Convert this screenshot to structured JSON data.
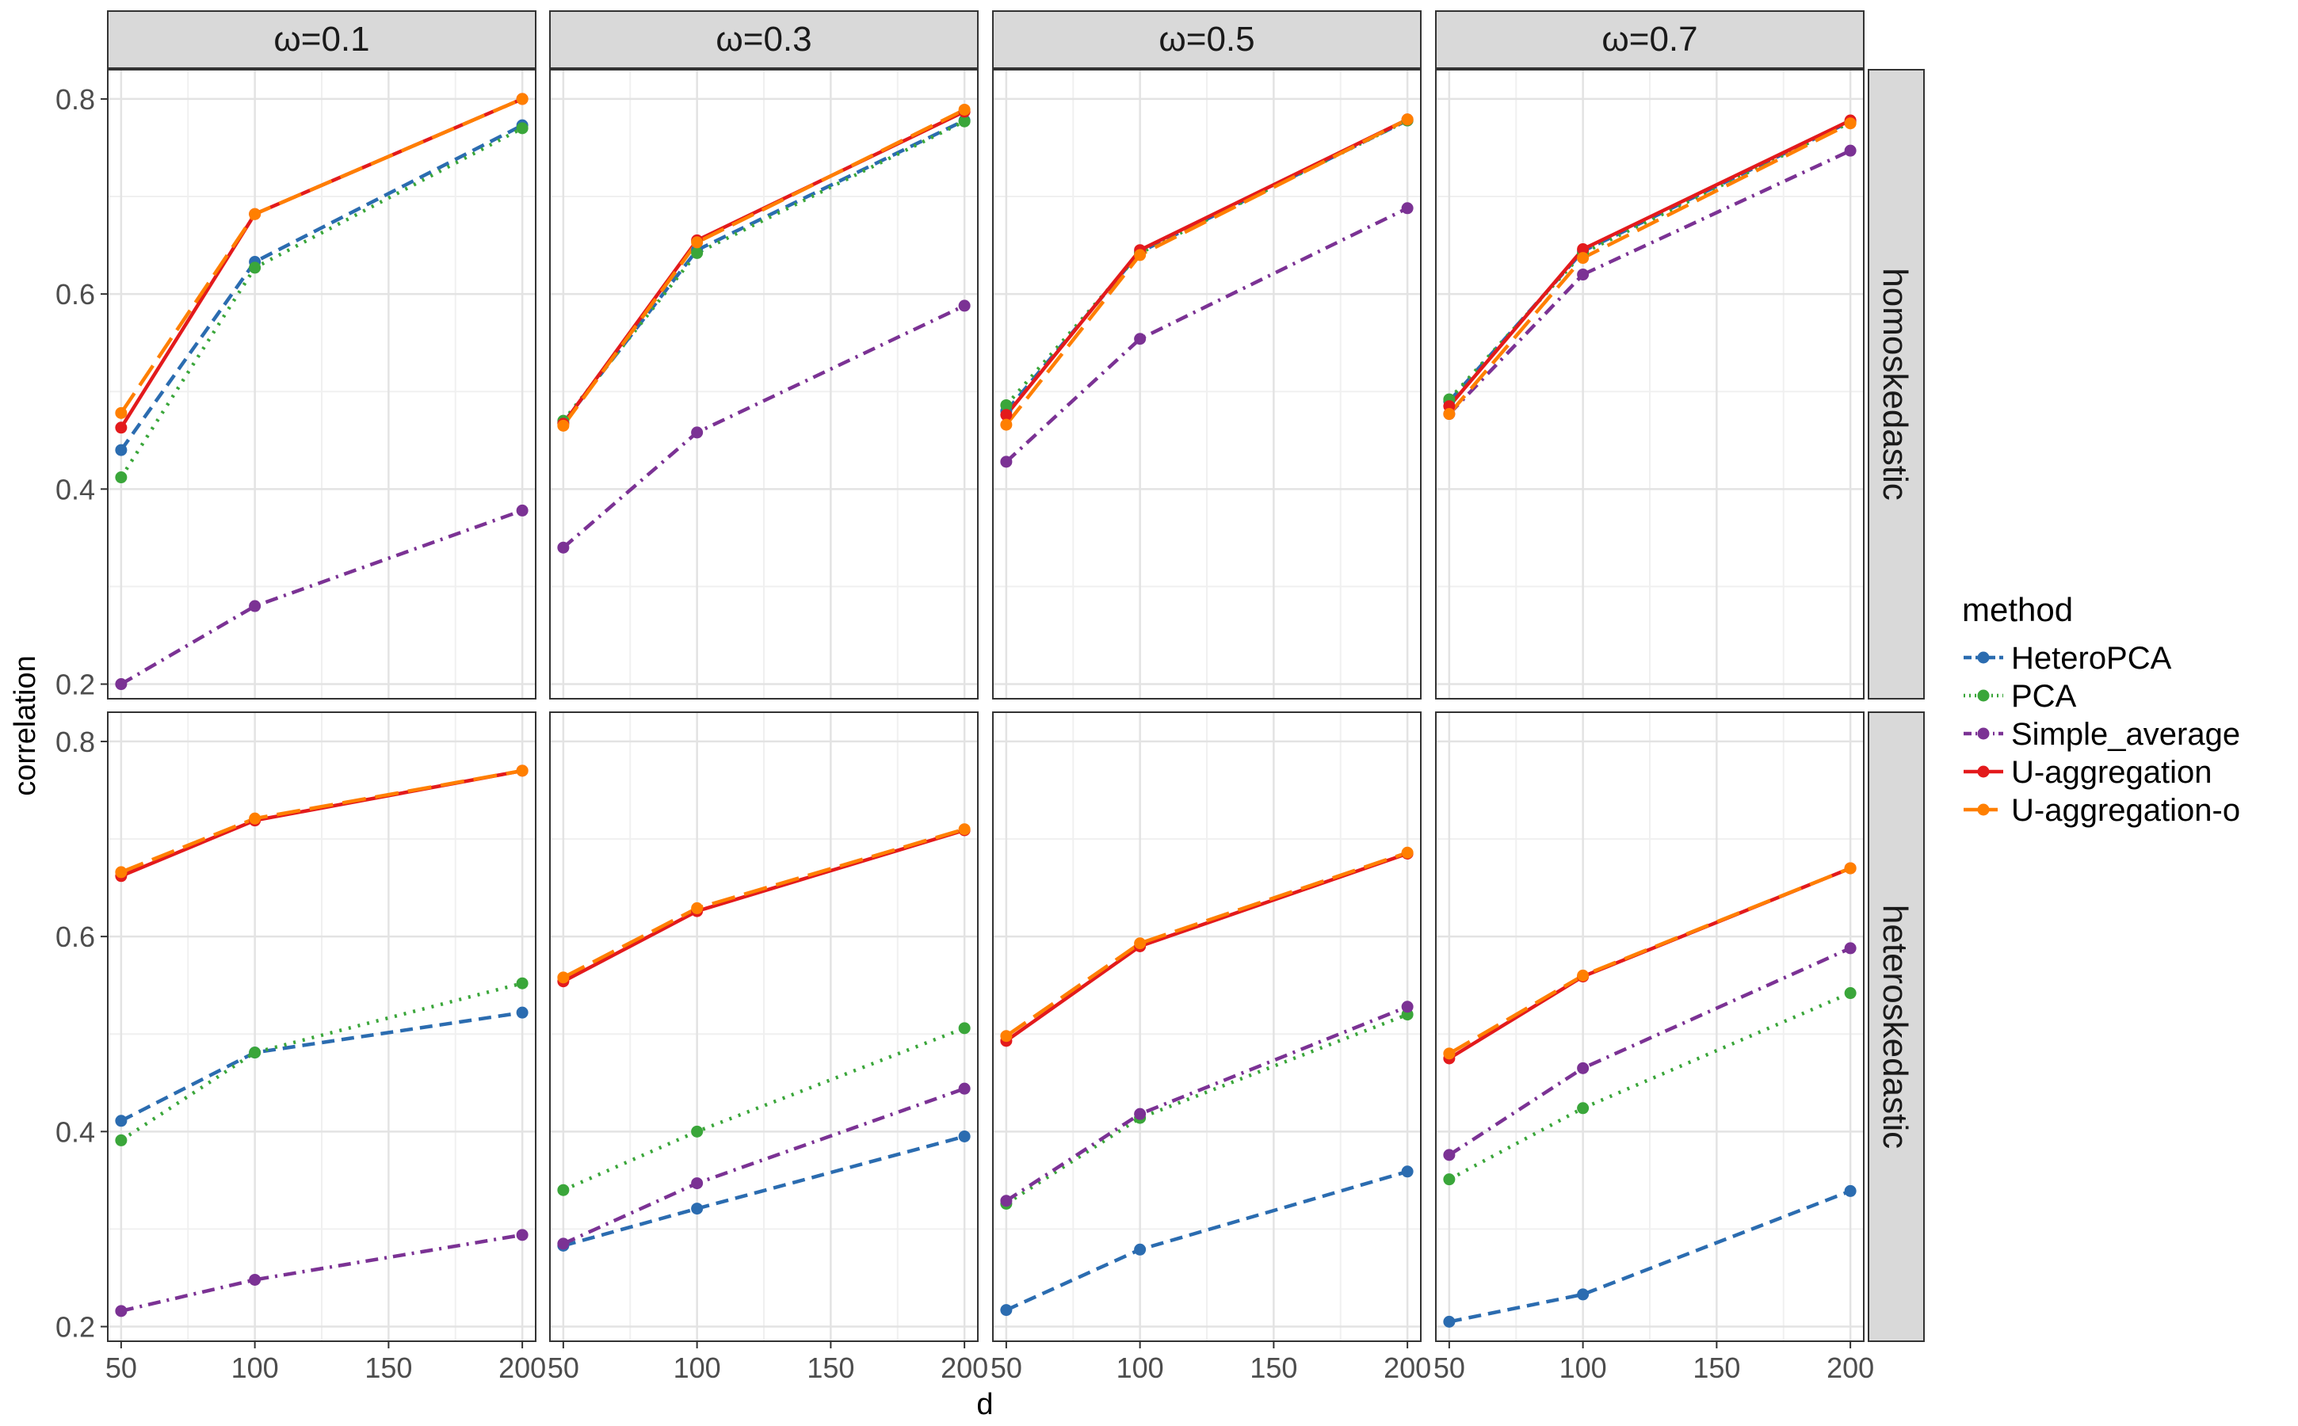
{
  "chart_data": {
    "type": "line",
    "xlabel": "d",
    "ylabel": "correlation",
    "x": [
      50,
      100,
      200
    ],
    "xticks": [
      50,
      100,
      150,
      200
    ],
    "xlim": [
      45,
      205
    ],
    "yticks": [
      0.2,
      0.4,
      0.6,
      0.8
    ],
    "ylim": [
      0.185,
      0.83
    ],
    "columns": [
      "ω=0.1",
      "ω=0.3",
      "ω=0.5",
      "ω=0.7"
    ],
    "rows": [
      "homoskedastic",
      "heteroskedastic"
    ],
    "legend": {
      "title": "method",
      "position": "right",
      "items": [
        "HeteroPCA",
        "PCA",
        "Simple_average",
        "U-aggregation",
        "U-aggregation-o"
      ]
    },
    "styles": {
      "HeteroPCA": {
        "color": "#2b6cb0",
        "dash": "16 9"
      },
      "PCA": {
        "color": "#3aa63a",
        "dash": "3 9"
      },
      "Simple_average": {
        "color": "#7b3294",
        "dash": "16 8 3 8"
      },
      "U-aggregation": {
        "color": "#e31a1c",
        "dash": ""
      },
      "U-aggregation-o": {
        "color": "#ff7f00",
        "dash": "30 12"
      }
    },
    "panels": [
      {
        "row": 0,
        "col": 0,
        "series": [
          {
            "name": "HeteroPCA",
            "values": [
              0.44,
              0.633,
              0.773
            ]
          },
          {
            "name": "PCA",
            "values": [
              0.412,
              0.627,
              0.77
            ]
          },
          {
            "name": "Simple_average",
            "values": [
              0.2,
              0.28,
              0.378
            ]
          },
          {
            "name": "U-aggregation",
            "values": [
              0.463,
              0.682,
              0.8
            ]
          },
          {
            "name": "U-aggregation-o",
            "values": [
              0.478,
              0.682,
              0.8
            ]
          }
        ]
      },
      {
        "row": 0,
        "col": 1,
        "series": [
          {
            "name": "HeteroPCA",
            "values": [
              0.468,
              0.645,
              0.778
            ]
          },
          {
            "name": "PCA",
            "values": [
              0.47,
              0.642,
              0.777
            ]
          },
          {
            "name": "Simple_average",
            "values": [
              0.34,
              0.458,
              0.588
            ]
          },
          {
            "name": "U-aggregation",
            "values": [
              0.467,
              0.655,
              0.787
            ]
          },
          {
            "name": "U-aggregation-o",
            "values": [
              0.465,
              0.653,
              0.789
            ]
          }
        ]
      },
      {
        "row": 0,
        "col": 2,
        "series": [
          {
            "name": "HeteroPCA",
            "values": [
              0.48,
              0.643,
              0.778
            ]
          },
          {
            "name": "PCA",
            "values": [
              0.486,
              0.642,
              0.778
            ]
          },
          {
            "name": "Simple_average",
            "values": [
              0.428,
              0.554,
              0.688
            ]
          },
          {
            "name": "U-aggregation",
            "values": [
              0.476,
              0.645,
              0.779
            ]
          },
          {
            "name": "U-aggregation-o",
            "values": [
              0.466,
              0.64,
              0.779
            ]
          }
        ]
      },
      {
        "row": 0,
        "col": 3,
        "series": [
          {
            "name": "HeteroPCA",
            "values": [
              0.49,
              0.644,
              0.777
            ]
          },
          {
            "name": "PCA",
            "values": [
              0.492,
              0.642,
              0.776
            ]
          },
          {
            "name": "Simple_average",
            "values": [
              0.477,
              0.62,
              0.747
            ]
          },
          {
            "name": "U-aggregation",
            "values": [
              0.485,
              0.646,
              0.778
            ]
          },
          {
            "name": "U-aggregation-o",
            "values": [
              0.477,
              0.637,
              0.775
            ]
          }
        ]
      },
      {
        "row": 1,
        "col": 0,
        "series": [
          {
            "name": "HeteroPCA",
            "values": [
              0.411,
              0.481,
              0.522
            ]
          },
          {
            "name": "PCA",
            "values": [
              0.391,
              0.481,
              0.552
            ]
          },
          {
            "name": "Simple_average",
            "values": [
              0.216,
              0.248,
              0.294
            ]
          },
          {
            "name": "U-aggregation",
            "values": [
              0.662,
              0.719,
              0.77
            ]
          },
          {
            "name": "U-aggregation-o",
            "values": [
              0.666,
              0.721,
              0.77
            ]
          }
        ]
      },
      {
        "row": 1,
        "col": 1,
        "series": [
          {
            "name": "HeteroPCA",
            "values": [
              0.283,
              0.321,
              0.395
            ]
          },
          {
            "name": "PCA",
            "values": [
              0.34,
              0.4,
              0.506
            ]
          },
          {
            "name": "Simple_average",
            "values": [
              0.285,
              0.347,
              0.444
            ]
          },
          {
            "name": "U-aggregation",
            "values": [
              0.554,
              0.626,
              0.709
            ]
          },
          {
            "name": "U-aggregation-o",
            "values": [
              0.558,
              0.629,
              0.71
            ]
          }
        ]
      },
      {
        "row": 1,
        "col": 2,
        "series": [
          {
            "name": "HeteroPCA",
            "values": [
              0.217,
              0.279,
              0.359
            ]
          },
          {
            "name": "PCA",
            "values": [
              0.326,
              0.414,
              0.52
            ]
          },
          {
            "name": "Simple_average",
            "values": [
              0.329,
              0.418,
              0.528
            ]
          },
          {
            "name": "U-aggregation",
            "values": [
              0.493,
              0.59,
              0.685
            ]
          },
          {
            "name": "U-aggregation-o",
            "values": [
              0.498,
              0.593,
              0.686
            ]
          }
        ]
      },
      {
        "row": 1,
        "col": 3,
        "series": [
          {
            "name": "HeteroPCA",
            "values": [
              0.205,
              0.233,
              0.339
            ]
          },
          {
            "name": "PCA",
            "values": [
              0.351,
              0.424,
              0.542
            ]
          },
          {
            "name": "Simple_average",
            "values": [
              0.376,
              0.465,
              0.588
            ]
          },
          {
            "name": "U-aggregation",
            "values": [
              0.475,
              0.559,
              0.67
            ]
          },
          {
            "name": "U-aggregation-o",
            "values": [
              0.48,
              0.56,
              0.67
            ]
          }
        ]
      }
    ]
  }
}
